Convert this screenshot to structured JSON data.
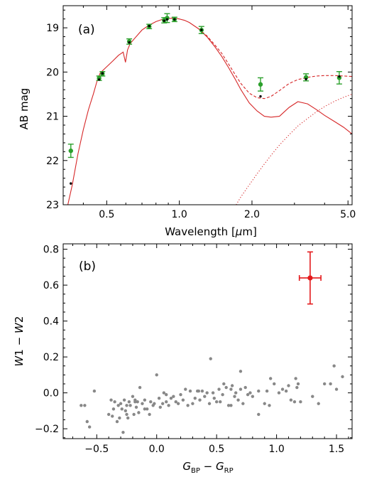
{
  "chart_data": [
    {
      "type": "line",
      "panel_label": "(a)",
      "xlabel": "Wavelength [μm]",
      "xlabel_parts": [
        "Wavelength [",
        "μ",
        "m]"
      ],
      "ylabel": "AB mag",
      "xscale": "log",
      "xlim": [
        0.33,
        5.2
      ],
      "ylim": [
        23,
        18.5
      ],
      "y_inverted": true,
      "x_ticks": [
        0.5,
        1.0,
        2.0,
        5.0
      ],
      "x_tick_labels": [
        "0.5",
        "1.0",
        "2.0",
        "5.0"
      ],
      "y_ticks": [
        19,
        20,
        21,
        22,
        23
      ],
      "y_tick_labels": [
        "19",
        "20",
        "21",
        "22",
        "23"
      ],
      "colors": {
        "model": "#d62728",
        "observed": "#2ca02c",
        "synthetic": "#000000"
      },
      "series": [
        {
          "style": "solid",
          "role": "stellar-model",
          "x": [
            0.345,
            0.36,
            0.38,
            0.4,
            0.42,
            0.44,
            0.455,
            0.47,
            0.5,
            0.53,
            0.56,
            0.585,
            0.598,
            0.61,
            0.625,
            0.65,
            0.7,
            0.75,
            0.8,
            0.85,
            0.9,
            0.95,
            1.0,
            1.05,
            1.1,
            1.2,
            1.3,
            1.4,
            1.5,
            1.6,
            1.7,
            1.8,
            1.95,
            2.1,
            2.25,
            2.4,
            2.6,
            2.85,
            3.1,
            3.4,
            3.7,
            4.0,
            4.4,
            4.8,
            5.2
          ],
          "y": [
            23.0,
            22.55,
            21.85,
            21.3,
            20.85,
            20.5,
            20.22,
            20.02,
            19.88,
            19.75,
            19.62,
            19.55,
            19.78,
            19.5,
            19.36,
            19.25,
            19.05,
            18.94,
            18.86,
            18.81,
            18.79,
            18.78,
            18.8,
            18.83,
            18.88,
            19.02,
            19.2,
            19.42,
            19.65,
            19.9,
            20.15,
            20.4,
            20.7,
            20.88,
            21.0,
            21.02,
            21.0,
            20.8,
            20.67,
            20.72,
            20.85,
            20.98,
            21.12,
            21.25,
            21.4
          ]
        },
        {
          "style": "dashed",
          "role": "total-model",
          "x": [
            1.2,
            1.3,
            1.4,
            1.5,
            1.6,
            1.7,
            1.8,
            1.95,
            2.1,
            2.25,
            2.4,
            2.6,
            2.85,
            3.1,
            3.4,
            3.7,
            4.0,
            4.4,
            4.8,
            5.2
          ],
          "y": [
            19.02,
            19.18,
            19.38,
            19.58,
            19.82,
            20.05,
            20.26,
            20.48,
            20.58,
            20.6,
            20.55,
            20.42,
            20.26,
            20.17,
            20.12,
            20.09,
            20.08,
            20.08,
            20.09,
            20.1
          ]
        },
        {
          "style": "dotted",
          "role": "dust-component",
          "x": [
            1.72,
            1.8,
            1.95,
            2.1,
            2.25,
            2.4,
            2.6,
            2.85,
            3.1,
            3.4,
            3.7,
            4.0,
            4.4,
            4.8,
            5.2
          ],
          "y": [
            23.0,
            22.82,
            22.55,
            22.3,
            22.08,
            21.88,
            21.65,
            21.42,
            21.22,
            21.05,
            20.9,
            20.78,
            20.66,
            20.57,
            20.5
          ]
        }
      ],
      "observed_points": {
        "x": [
          0.355,
          0.465,
          0.48,
          0.62,
          0.75,
          0.865,
          0.89,
          0.955,
          1.235,
          2.17,
          3.35,
          4.6
        ],
        "y": [
          21.78,
          20.14,
          20.04,
          19.31,
          18.97,
          18.83,
          18.78,
          18.81,
          19.05,
          20.28,
          20.12,
          20.13
        ],
        "yerr": [
          0.15,
          0.05,
          0.05,
          0.06,
          0.05,
          0.06,
          0.1,
          0.05,
          0.08,
          0.15,
          0.08,
          0.14
        ]
      },
      "synthetic_points": {
        "x": [
          0.355,
          0.465,
          0.48,
          0.62,
          0.75,
          0.865,
          0.89,
          0.955,
          1.235,
          2.17,
          3.35,
          4.6
        ],
        "y": [
          22.52,
          20.17,
          20.03,
          19.33,
          18.96,
          18.84,
          18.81,
          18.81,
          19.05,
          20.55,
          20.16,
          20.1
        ]
      }
    },
    {
      "type": "scatter",
      "panel_label": "(b)",
      "xlabel": "G_BP − G_RP",
      "ylabel": "W1 − W2",
      "xlim": [
        -0.78,
        1.63
      ],
      "ylim": [
        -0.255,
        0.83
      ],
      "x_ticks": [
        -0.5,
        0.0,
        0.5,
        1.0,
        1.5
      ],
      "x_tick_labels": [
        "−0.5",
        "0.0",
        "0.5",
        "1.0",
        "1.5"
      ],
      "y_ticks": [
        -0.2,
        0.0,
        0.2,
        0.4,
        0.6,
        0.8
      ],
      "y_tick_labels": [
        "−0.2",
        "0.0",
        "0.2",
        "0.4",
        "0.6",
        "0.8"
      ],
      "colors": {
        "background": "#888888",
        "highlight": "#e41a1c"
      },
      "background_points": {
        "x": [
          -0.63,
          -0.58,
          -0.56,
          -0.6,
          -0.52,
          -0.4,
          -0.38,
          -0.37,
          -0.36,
          -0.35,
          -0.33,
          -0.32,
          -0.31,
          -0.3,
          -0.29,
          -0.28,
          -0.27,
          -0.26,
          -0.25,
          -0.24,
          -0.23,
          -0.22,
          -0.2,
          -0.19,
          -0.18,
          -0.17,
          -0.16,
          -0.15,
          -0.14,
          -0.12,
          -0.1,
          -0.08,
          -0.06,
          -0.05,
          -0.03,
          -0.02,
          0.0,
          0.02,
          0.03,
          0.05,
          0.06,
          0.08,
          0.1,
          0.12,
          0.14,
          0.16,
          0.18,
          0.2,
          0.22,
          0.24,
          0.26,
          0.28,
          0.3,
          0.32,
          0.34,
          0.36,
          0.38,
          0.4,
          0.42,
          0.44,
          0.45,
          0.47,
          0.48,
          0.5,
          0.52,
          0.53,
          0.55,
          0.56,
          0.58,
          0.6,
          0.62,
          0.63,
          0.65,
          0.66,
          0.68,
          0.7,
          0.72,
          0.74,
          0.76,
          0.78,
          0.8,
          0.85,
          0.9,
          0.92,
          0.95,
          0.98,
          1.02,
          1.05,
          1.08,
          1.1,
          1.15,
          1.16,
          1.17,
          1.18,
          1.2,
          1.3,
          1.35,
          1.4,
          1.45,
          1.48,
          1.5,
          1.55,
          -0.18,
          -0.25,
          0.62,
          0.08,
          0.35,
          -0.1,
          0.7,
          0.85,
          0.94,
          1.12
        ],
        "y": [
          -0.07,
          -0.16,
          -0.19,
          -0.07,
          0.01,
          -0.12,
          -0.04,
          -0.13,
          -0.09,
          -0.05,
          -0.16,
          -0.07,
          -0.14,
          -0.06,
          -0.09,
          -0.22,
          -0.04,
          -0.1,
          -0.07,
          -0.14,
          -0.05,
          -0.07,
          -0.02,
          -0.12,
          -0.04,
          -0.08,
          -0.05,
          -0.11,
          0.03,
          -0.06,
          -0.04,
          -0.09,
          -0.12,
          -0.05,
          -0.07,
          -0.06,
          0.1,
          -0.03,
          -0.08,
          -0.06,
          0.0,
          -0.05,
          -0.07,
          -0.03,
          -0.02,
          -0.05,
          -0.06,
          -0.01,
          -0.04,
          0.02,
          -0.07,
          0.01,
          -0.06,
          -0.03,
          0.01,
          -0.04,
          0.01,
          -0.02,
          0.0,
          -0.06,
          0.19,
          0.0,
          -0.03,
          -0.05,
          0.02,
          -0.05,
          -0.01,
          0.05,
          0.03,
          -0.07,
          0.02,
          0.04,
          -0.02,
          0.0,
          -0.04,
          0.12,
          -0.06,
          0.03,
          -0.01,
          0.0,
          -0.02,
          0.01,
          -0.06,
          0.01,
          0.08,
          0.05,
          0.0,
          0.02,
          0.01,
          0.04,
          -0.05,
          0.08,
          0.03,
          0.05,
          -0.05,
          -0.02,
          -0.06,
          0.05,
          0.05,
          0.15,
          0.02,
          0.09,
          -0.05,
          -0.12,
          -0.07,
          -0.01,
          0.01,
          -0.09,
          0.02,
          -0.12,
          -0.07,
          -0.04
        ],
        "marker_size": 2.2
      },
      "highlight_point": {
        "x": 1.28,
        "y": 0.64,
        "xerr": 0.09,
        "yerr": 0.145
      }
    }
  ]
}
